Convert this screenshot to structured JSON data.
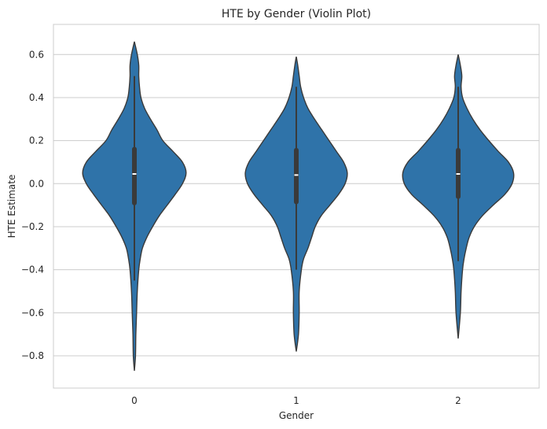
{
  "chart_data": {
    "type": "violin",
    "title": "HTE by Gender (Violin Plot)",
    "xlabel": "Gender",
    "ylabel": "HTE Estimate",
    "categories": [
      "0",
      "1",
      "2"
    ],
    "yticks": [
      0.6,
      0.4,
      0.2,
      0.0,
      -0.2,
      -0.4,
      -0.6,
      -0.8
    ],
    "ytick_labels": [
      "0.6",
      "0.4",
      "0.2",
      "0.0",
      "−0.2",
      "−0.4",
      "−0.6",
      "−0.8"
    ],
    "ylim": [
      -0.95,
      0.74
    ],
    "grid": true,
    "color": "#2f73a9",
    "violins": [
      {
        "category": "0",
        "min": -0.87,
        "max": 0.66,
        "q1": -0.09,
        "median": 0.045,
        "q3": 0.16,
        "whisker_low": -0.45,
        "whisker_high": 0.5,
        "density": [
          [
            0.66,
            0.0
          ],
          [
            0.6,
            0.04
          ],
          [
            0.55,
            0.06
          ],
          [
            0.5,
            0.06
          ],
          [
            0.45,
            0.07
          ],
          [
            0.4,
            0.09
          ],
          [
            0.35,
            0.14
          ],
          [
            0.3,
            0.22
          ],
          [
            0.25,
            0.31
          ],
          [
            0.2,
            0.39
          ],
          [
            0.15,
            0.53
          ],
          [
            0.1,
            0.66
          ],
          [
            0.05,
            0.71
          ],
          [
            0.0,
            0.66
          ],
          [
            -0.05,
            0.56
          ],
          [
            -0.1,
            0.45
          ],
          [
            -0.15,
            0.34
          ],
          [
            -0.2,
            0.25
          ],
          [
            -0.25,
            0.17
          ],
          [
            -0.3,
            0.11
          ],
          [
            -0.35,
            0.08
          ],
          [
            -0.4,
            0.06
          ],
          [
            -0.5,
            0.04
          ],
          [
            -0.6,
            0.03
          ],
          [
            -0.7,
            0.02
          ],
          [
            -0.8,
            0.015
          ],
          [
            -0.87,
            0.0
          ]
        ]
      },
      {
        "category": "1",
        "min": -0.78,
        "max": 0.59,
        "q1": -0.085,
        "median": 0.04,
        "q3": 0.155,
        "whisker_low": -0.4,
        "whisker_high": 0.45,
        "density": [
          [
            0.59,
            0.0
          ],
          [
            0.55,
            0.02
          ],
          [
            0.5,
            0.04
          ],
          [
            0.45,
            0.06
          ],
          [
            0.4,
            0.1
          ],
          [
            0.35,
            0.16
          ],
          [
            0.3,
            0.25
          ],
          [
            0.25,
            0.35
          ],
          [
            0.2,
            0.45
          ],
          [
            0.15,
            0.55
          ],
          [
            0.1,
            0.65
          ],
          [
            0.05,
            0.7
          ],
          [
            0.0,
            0.67
          ],
          [
            -0.05,
            0.58
          ],
          [
            -0.1,
            0.46
          ],
          [
            -0.15,
            0.34
          ],
          [
            -0.2,
            0.26
          ],
          [
            -0.25,
            0.21
          ],
          [
            -0.3,
            0.16
          ],
          [
            -0.35,
            0.1
          ],
          [
            -0.4,
            0.07
          ],
          [
            -0.5,
            0.04
          ],
          [
            -0.6,
            0.04
          ],
          [
            -0.7,
            0.03
          ],
          [
            -0.78,
            0.0
          ]
        ]
      },
      {
        "category": "2",
        "min": -0.72,
        "max": 0.6,
        "q1": -0.06,
        "median": 0.045,
        "q3": 0.155,
        "whisker_low": -0.36,
        "whisker_high": 0.45,
        "density": [
          [
            0.6,
            0.0
          ],
          [
            0.55,
            0.03
          ],
          [
            0.5,
            0.05
          ],
          [
            0.45,
            0.04
          ],
          [
            0.4,
            0.06
          ],
          [
            0.35,
            0.12
          ],
          [
            0.3,
            0.2
          ],
          [
            0.25,
            0.3
          ],
          [
            0.2,
            0.42
          ],
          [
            0.15,
            0.55
          ],
          [
            0.1,
            0.69
          ],
          [
            0.05,
            0.76
          ],
          [
            0.0,
            0.74
          ],
          [
            -0.05,
            0.64
          ],
          [
            -0.1,
            0.48
          ],
          [
            -0.15,
            0.33
          ],
          [
            -0.2,
            0.22
          ],
          [
            -0.25,
            0.15
          ],
          [
            -0.3,
            0.11
          ],
          [
            -0.35,
            0.08
          ],
          [
            -0.4,
            0.06
          ],
          [
            -0.5,
            0.04
          ],
          [
            -0.6,
            0.03
          ],
          [
            -0.72,
            0.0
          ]
        ]
      }
    ]
  }
}
